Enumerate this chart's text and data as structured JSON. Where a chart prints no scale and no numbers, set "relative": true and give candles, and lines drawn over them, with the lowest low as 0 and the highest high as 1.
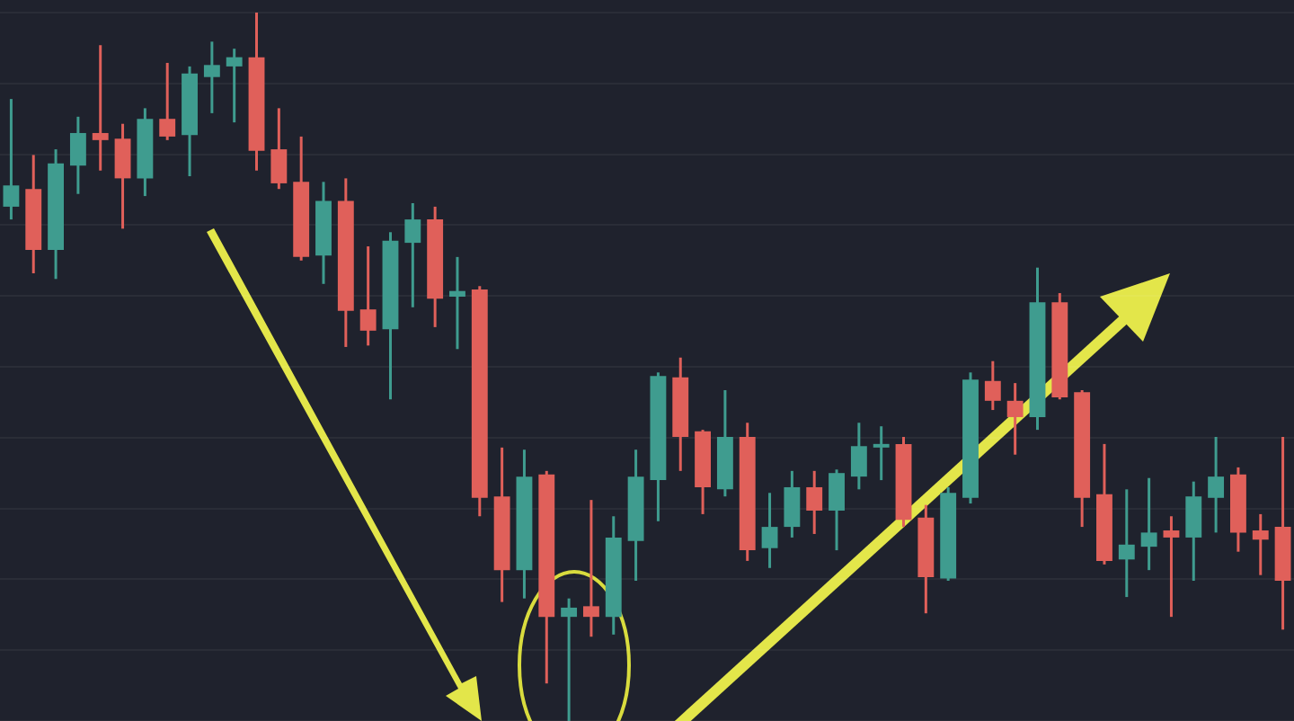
{
  "chart_data": {
    "type": "candlestick",
    "relative": true,
    "grid": "y",
    "legend": false,
    "categories": [
      null,
      null,
      null,
      null,
      null,
      null,
      null,
      null,
      null,
      null,
      null,
      null,
      null,
      null,
      null,
      null,
      null,
      null,
      null,
      null,
      null,
      null,
      null,
      null,
      null,
      null,
      null,
      null,
      null,
      null,
      null,
      null,
      null,
      null,
      null,
      null,
      null,
      null,
      null,
      null,
      null,
      null,
      null,
      null,
      null,
      null,
      null,
      null,
      null,
      null,
      null,
      null,
      null,
      null,
      null,
      null,
      null,
      null
    ],
    "ohlc": [
      [
        0.726,
        0.878,
        0.708,
        0.756
      ],
      [
        0.751,
        0.799,
        0.632,
        0.665
      ],
      [
        0.665,
        0.807,
        0.624,
        0.787
      ],
      [
        0.784,
        0.853,
        0.744,
        0.83
      ],
      [
        0.83,
        0.954,
        0.777,
        0.82
      ],
      [
        0.822,
        0.843,
        0.695,
        0.766
      ],
      [
        0.766,
        0.865,
        0.741,
        0.85
      ],
      [
        0.85,
        0.929,
        0.82,
        0.825
      ],
      [
        0.827,
        0.924,
        0.769,
        0.914
      ],
      [
        0.909,
        0.959,
        0.858,
        0.926
      ],
      [
        0.924,
        0.949,
        0.845,
        0.937
      ],
      [
        0.937,
        1,
        0.777,
        0.805
      ],
      [
        0.807,
        0.865,
        0.751,
        0.759
      ],
      [
        0.761,
        0.825,
        0.65,
        0.655
      ],
      [
        0.657,
        0.761,
        0.617,
        0.734
      ],
      [
        0.734,
        0.766,
        0.528,
        0.579
      ],
      [
        0.581,
        0.67,
        0.53,
        0.551
      ],
      [
        0.553,
        0.69,
        0.454,
        0.678
      ],
      [
        0.675,
        0.731,
        0.584,
        0.708
      ],
      [
        0.708,
        0.726,
        0.556,
        0.596
      ],
      [
        0.599,
        0.655,
        0.525,
        0.607
      ],
      [
        0.609,
        0.614,
        0.289,
        0.315
      ],
      [
        0.317,
        0.386,
        0.168,
        0.213
      ],
      [
        0.213,
        0.383,
        0.173,
        0.345
      ],
      [
        0.348,
        0.353,
        0.053,
        0.147
      ],
      [
        0.147,
        0.173,
        0,
        0.16
      ],
      [
        0.162,
        0.312,
        0.119,
        0.147
      ],
      [
        0.147,
        0.289,
        0.122,
        0.259
      ],
      [
        0.254,
        0.383,
        0.198,
        0.345
      ],
      [
        0.34,
        0.492,
        0.282,
        0.487
      ],
      [
        0.485,
        0.513,
        0.353,
        0.401
      ],
      [
        0.409,
        0.411,
        0.292,
        0.33
      ],
      [
        0.327,
        0.467,
        0.317,
        0.401
      ],
      [
        0.401,
        0.421,
        0.226,
        0.241
      ],
      [
        0.244,
        0.322,
        0.216,
        0.274
      ],
      [
        0.274,
        0.353,
        0.259,
        0.33
      ],
      [
        0.33,
        0.353,
        0.264,
        0.297
      ],
      [
        0.297,
        0.355,
        0.241,
        0.35
      ],
      [
        0.345,
        0.421,
        0.327,
        0.388
      ],
      [
        0.386,
        0.416,
        0.34,
        0.391
      ],
      [
        0.391,
        0.401,
        0.274,
        0.284
      ],
      [
        0.287,
        0.305,
        0.152,
        0.203
      ],
      [
        0.201,
        0.33,
        0.198,
        0.322
      ],
      [
        0.315,
        0.492,
        0.307,
        0.482
      ],
      [
        0.48,
        0.508,
        0.439,
        0.452
      ],
      [
        0.452,
        0.477,
        0.376,
        0.429
      ],
      [
        0.429,
        0.64,
        0.411,
        0.591
      ],
      [
        0.591,
        0.604,
        0.454,
        0.457
      ],
      [
        0.464,
        0.467,
        0.274,
        0.315
      ],
      [
        0.32,
        0.391,
        0.221,
        0.226
      ],
      [
        0.228,
        0.327,
        0.175,
        0.249
      ],
      [
        0.246,
        0.343,
        0.213,
        0.266
      ],
      [
        0.269,
        0.289,
        0.147,
        0.259
      ],
      [
        0.259,
        0.338,
        0.198,
        0.317
      ],
      [
        0.315,
        0.401,
        0.266,
        0.345
      ],
      [
        0.348,
        0.358,
        0.239,
        0.266
      ],
      [
        0.269,
        0.292,
        0.206,
        0.256
      ],
      [
        0.274,
        0.401,
        0.129,
        0.198
      ]
    ],
    "colors": [
      "#3f9c8f",
      "#e0605a",
      "#3f9c8f",
      "#3f9c8f",
      "#e0605a",
      "#e0605a",
      "#3f9c8f",
      "#e0605a",
      "#3f9c8f",
      "#3f9c8f",
      "#3f9c8f",
      "#e0605a",
      "#e0605a",
      "#e0605a",
      "#3f9c8f",
      "#e0605a",
      "#e0605a",
      "#3f9c8f",
      "#3f9c8f",
      "#e0605a",
      "#3f9c8f",
      "#e0605a",
      "#e0605a",
      "#3f9c8f",
      "#e0605a",
      "#3f9c8f",
      "#e0605a",
      "#3f9c8f",
      "#3f9c8f",
      "#3f9c8f",
      "#e0605a",
      "#e0605a",
      "#3f9c8f",
      "#e0605a",
      "#3f9c8f",
      "#3f9c8f",
      "#e0605a",
      "#3f9c8f",
      "#3f9c8f",
      "#3f9c8f",
      "#e0605a",
      "#e0605a",
      "#3f9c8f",
      "#3f9c8f",
      "#e0605a",
      "#e0605a",
      "#3f9c8f",
      "#e0605a",
      "#e0605a",
      "#e0605a",
      "#3f9c8f",
      "#3f9c8f",
      "#e0605a",
      "#3f9c8f",
      "#3f9c8f",
      "#e0605a",
      "#e0605a",
      "#e0605a"
    ]
  }
}
